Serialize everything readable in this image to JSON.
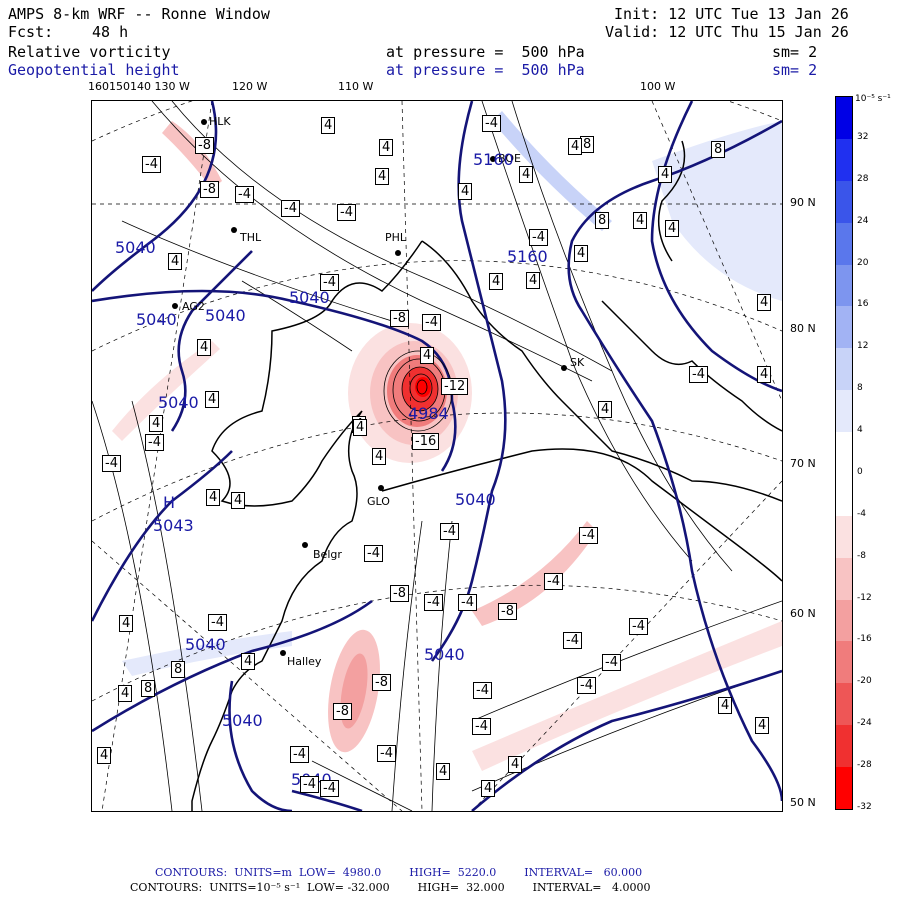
{
  "header": {
    "model": "AMPS 8-km WRF -- Ronne Window",
    "fcst_label": "Fcst:",
    "fcst_value": "48 h",
    "init": "Init: 12 UTC Tue 13 Jan 26",
    "valid": "Valid: 12 UTC Thu 15 Jan 26",
    "field1": "Relative vorticity",
    "field2": "Geopotential height",
    "pressure1": "at pressure =  500 hPa",
    "pressure2": "at pressure =  500 hPa",
    "sm1": "sm= 2",
    "sm2": "sm= 2"
  },
  "longitude_labels": [
    "160150140 130 W",
    "120 W",
    "110 W",
    "100 W"
  ],
  "latitude_labels": [
    "90 N",
    "80 N",
    "70 N",
    "60 N",
    "50 N"
  ],
  "colorbar": {
    "unit": "10⁻⁵ s⁻¹",
    "ticks": [
      "32",
      "28",
      "24",
      "20",
      "16",
      "12",
      "8",
      "4",
      "0",
      "-4",
      "-8",
      "-12",
      "-16",
      "-20",
      "-24",
      "-28",
      "-32"
    ],
    "colors": [
      "#0000e6",
      "#2030f0",
      "#3a55ea",
      "#5a77ec",
      "#7d95ef",
      "#a2b3f4",
      "#c8d3f8",
      "#e4e9fb",
      "#ffffff",
      "#ffffff",
      "#fbe1e1",
      "#f8c3c3",
      "#f3a0a0",
      "#f07c7c",
      "#ee5656",
      "#f03030",
      "#ff0000"
    ]
  },
  "stations": [
    {
      "name": "HLK"
    },
    {
      "name": "BOE"
    },
    {
      "name": "THL"
    },
    {
      "name": "PHL"
    },
    {
      "name": "AG2"
    },
    {
      "name": "SK"
    },
    {
      "name": "GLO"
    },
    {
      "name": "Belgr"
    },
    {
      "name": "Halley"
    }
  ],
  "height_labels": [
    "5040",
    "5040",
    "5040",
    "5040",
    "4984",
    "5160",
    "5040",
    "5040",
    "5040",
    "5040",
    "5040",
    "5043",
    "H",
    "5040",
    "5160"
  ],
  "vorticity_labels": [
    "-8",
    "-8",
    "-4",
    "-4",
    "-4",
    "-4",
    "4",
    "4",
    "4",
    "4",
    "4",
    "8",
    "8",
    "8",
    "4",
    "-4",
    "4",
    "4",
    "4",
    "-4",
    "4",
    "4",
    "4",
    "4",
    "-8",
    "-4",
    "-12",
    "-16",
    "-4",
    "4",
    "4",
    "4",
    "-4",
    "4",
    "4",
    "-4",
    "-4",
    "-8",
    "-4",
    "-4",
    "-8",
    "-4",
    "-4",
    "-4",
    "8",
    "-8",
    "-8",
    "-4",
    "-4",
    "-4",
    "4",
    "-4",
    "4",
    "-4",
    "4",
    "-4",
    "4",
    "4",
    "4",
    "-4",
    "-4",
    "4",
    "8",
    "4",
    "4",
    "-4",
    "4",
    "4",
    "4",
    "-4",
    "-4",
    "-4",
    "4",
    "4",
    "4",
    "4"
  ],
  "footer": {
    "line1": "CONTOURS:  UNITS=m  LOW=  4980.0        HIGH=  5220.0        INTERVAL=   60.000",
    "line2": "CONTOURS:  UNITS=10⁻⁵ s⁻¹  LOW= -32.000        HIGH=  32.000        INTERVAL=   4.0000"
  }
}
